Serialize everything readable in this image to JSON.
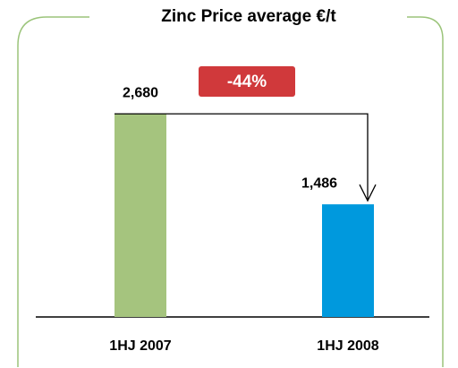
{
  "chart_data": {
    "type": "bar",
    "title": "Zinc Price average €/t",
    "categories": [
      "1HJ 2007",
      "1HJ 2008"
    ],
    "values": [
      2680,
      1486
    ],
    "value_labels": [
      "2,680",
      "1,486"
    ],
    "colors": [
      "#a5c47e",
      "#0099dd"
    ],
    "ylim": [
      0,
      3000
    ],
    "annotation": "-44%",
    "annotation_color": "#d0393b"
  }
}
